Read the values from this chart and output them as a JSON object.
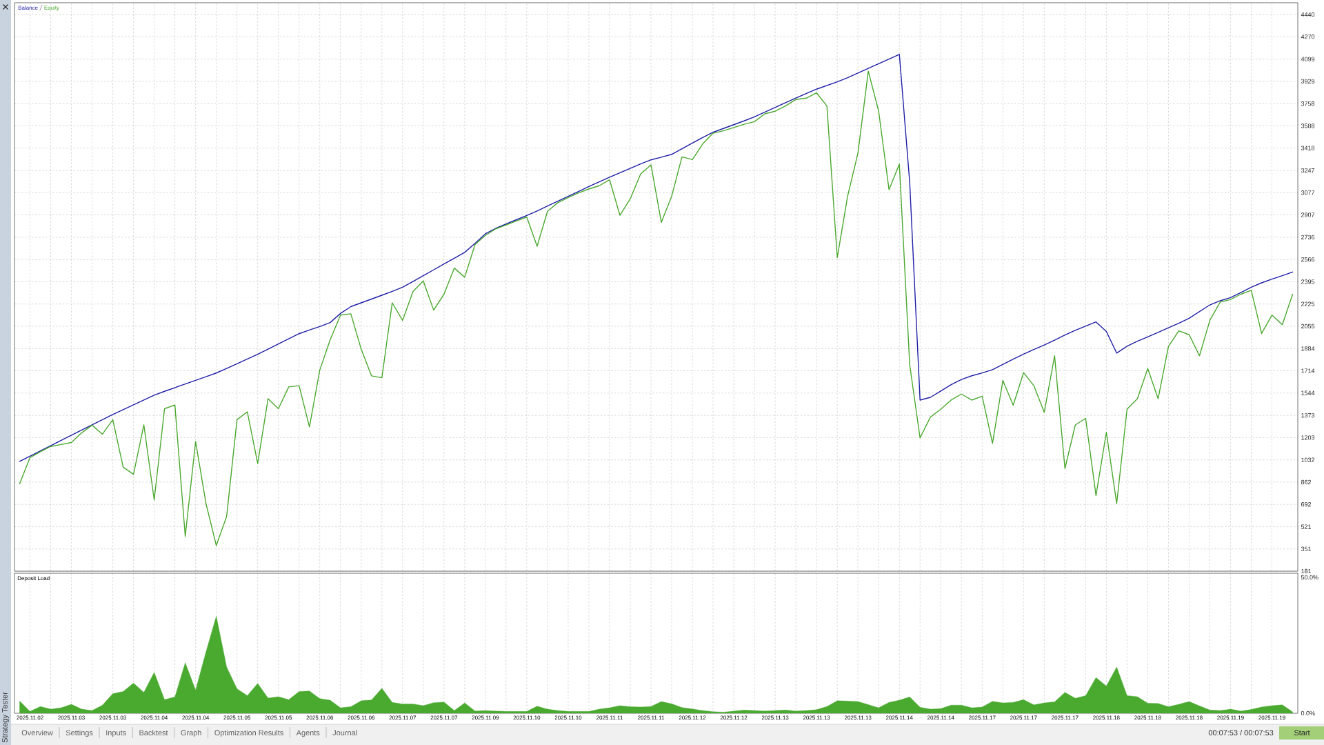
{
  "chart_data": [
    {
      "type": "line",
      "legend": "top left",
      "grid": true,
      "tick_labels": "y",
      "categories": [
        null,
        "2025.11.02",
        null,
        null,
        null,
        "2025.11.03",
        null,
        null,
        null,
        "2025.11.03",
        null,
        null,
        null,
        "2025.11.04",
        null,
        null,
        null,
        "2025.11.04",
        null,
        null,
        null,
        "2025.11.05",
        null,
        null,
        null,
        "2025.11.05",
        null,
        null,
        null,
        "2025.11.06",
        null,
        null,
        null,
        "2025.11.06",
        null,
        null,
        null,
        "2025.11.07",
        null,
        null,
        null,
        "2025.11.07",
        null,
        null,
        null,
        "2025.11.09",
        null,
        null,
        null,
        "2025.11.10",
        null,
        null,
        null,
        "2025.11.10",
        null,
        null,
        null,
        "2025.11.11",
        null,
        null,
        null,
        "2025.11.11",
        null,
        null,
        null,
        "2025.11.12",
        null,
        null,
        null,
        "2025.11.12",
        null,
        null,
        null,
        "2025.11.13",
        null,
        null,
        null,
        "2025.11.13",
        null,
        null,
        null,
        "2025.11.13",
        null,
        null,
        null,
        "2025.11.14",
        null,
        null,
        null,
        "2025.11.14",
        null,
        null,
        null,
        "2025.11.17",
        null,
        null,
        null,
        "2025.11.17",
        null,
        null,
        null,
        "2025.11.17",
        null,
        null,
        null,
        "2025.11.18",
        null,
        null,
        null,
        "2025.11.18",
        null,
        null,
        null,
        "2025.11.18",
        null,
        null,
        null,
        "2025.11.19",
        null,
        null,
        null,
        "2025.11.19",
        null,
        null
      ],
      "ylim": [
        181,
        4530
      ],
      "yticks": [
        4440,
        4270,
        4099,
        3929,
        3758,
        3588,
        3418,
        3247,
        3077,
        2907,
        2736,
        2566,
        2395,
        2225,
        2055,
        1884,
        1714,
        1544,
        1373,
        1203,
        1032,
        862,
        692,
        521,
        351,
        181
      ],
      "series": [
        {
          "name": "Balance",
          "color": "#1f1fa8",
          "values": [
            1021,
            1061,
            1101,
            1141,
            1181,
            1221,
            1261,
            1300,
            1340,
            1380,
            1417,
            1453,
            1490,
            1527,
            1557,
            1585,
            1613,
            1641,
            1669,
            1697,
            1732,
            1768,
            1804,
            1840,
            1880,
            1919,
            1959,
            1998,
            2026,
            2053,
            2083,
            2153,
            2205,
            2234,
            2263,
            2292,
            2322,
            2353,
            2397,
            2442,
            2486,
            2531,
            2575,
            2620,
            2689,
            2762,
            2804,
            2837,
            2870,
            2902,
            2937,
            2975,
            3012,
            3049,
            3086,
            3124,
            3160,
            3195,
            3229,
            3263,
            3297,
            3328,
            3348,
            3370,
            3413,
            3456,
            3499,
            3539,
            3568,
            3597,
            3626,
            3657,
            3693,
            3729,
            3765,
            3801,
            3835,
            3869,
            3897,
            3925,
            3957,
            3992,
            4028,
            4064,
            4099,
            4135,
            3155,
            1490,
            1511,
            1559,
            1608,
            1648,
            1676,
            1698,
            1723,
            1763,
            1803,
            1842,
            1877,
            1912,
            1948,
            1988,
            2024,
            2056,
            2088,
            2015,
            1849,
            1902,
            1940,
            1974,
            2008,
            2043,
            2078,
            2116,
            2167,
            2218,
            2250,
            2274,
            2313,
            2353,
            2387,
            2415,
            2442,
            2470
          ]
        },
        {
          "name": "Equity",
          "color": "#4aa82e",
          "values": [
            850,
            1050,
            1095,
            1135,
            1150,
            1165,
            1240,
            1298,
            1229,
            1340,
            977,
            922,
            1300,
            726,
            1424,
            1452,
            447,
            1173,
            700,
            377,
            600,
            1340,
            1400,
            1005,
            1500,
            1424,
            1591,
            1600,
            1285,
            1720,
            1950,
            2140,
            2150,
            1880,
            1675,
            1661,
            2234,
            2100,
            2320,
            2402,
            2178,
            2300,
            2500,
            2430,
            2680,
            2750,
            2800,
            2830,
            2860,
            2890,
            2667,
            2935,
            3000,
            3040,
            3075,
            3105,
            3130,
            3175,
            2904,
            3030,
            3220,
            3290,
            2850,
            3050,
            3351,
            3330,
            3450,
            3532,
            3550,
            3575,
            3600,
            3620,
            3680,
            3700,
            3740,
            3790,
            3800,
            3840,
            3740,
            2580,
            3050,
            3380,
            4007,
            3700,
            3100,
            3295,
            1760,
            1201,
            1360,
            1420,
            1490,
            1536,
            1490,
            1520,
            1159,
            1640,
            1450,
            1700,
            1600,
            1396,
            1829,
            966,
            1300,
            1350,
            760,
            1243,
            698,
            1420,
            1500,
            1731,
            1500,
            1900,
            2020,
            1990,
            1829,
            2100,
            2240,
            2260,
            2300,
            2330,
            2000,
            2140,
            2066,
            2300
          ]
        }
      ]
    },
    {
      "type": "area",
      "title": "Deposit Load",
      "grid": "x",
      "color": "#4aaa30",
      "categories": [
        null,
        "2025.11.02",
        null,
        null,
        null,
        "2025.11.03",
        null,
        null,
        null,
        "2025.11.03",
        null,
        null,
        null,
        "2025.11.04",
        null,
        null,
        null,
        "2025.11.04",
        null,
        null,
        null,
        "2025.11.05",
        null,
        null,
        null,
        "2025.11.05",
        null,
        null,
        null,
        "2025.11.06",
        null,
        null,
        null,
        "2025.11.06",
        null,
        null,
        null,
        "2025.11.07",
        null,
        null,
        null,
        "2025.11.07",
        null,
        null,
        null,
        "2025.11.09",
        null,
        null,
        null,
        "2025.11.10",
        null,
        null,
        null,
        "2025.11.10",
        null,
        null,
        null,
        "2025.11.11",
        null,
        null,
        null,
        "2025.11.11",
        null,
        null,
        null,
        "2025.11.12",
        null,
        null,
        null,
        "2025.11.12",
        null,
        null,
        null,
        "2025.11.13",
        null,
        null,
        null,
        "2025.11.13",
        null,
        null,
        null,
        "2025.11.13",
        null,
        null,
        null,
        "2025.11.14",
        null,
        null,
        null,
        "2025.11.14",
        null,
        null,
        null,
        "2025.11.17",
        null,
        null,
        null,
        "2025.11.17",
        null,
        null,
        null,
        "2025.11.17",
        null,
        null,
        null,
        "2025.11.18",
        null,
        null,
        null,
        "2025.11.18",
        null,
        null,
        null,
        "2025.11.18",
        null,
        null,
        null,
        "2025.11.19",
        null,
        null,
        null,
        "2025.11.19",
        null,
        null
      ],
      "ylim": [
        0,
        51.5
      ],
      "yticks": [
        {
          "value": 50,
          "label": "50.0%"
        },
        {
          "value": 0,
          "label": "0.0%"
        }
      ],
      "values": [
        4.5,
        0.7,
        2.5,
        1.5,
        2.0,
        3.3,
        1.5,
        1.0,
        3.0,
        7.2,
        8.0,
        11.1,
        7.7,
        15.0,
        5.0,
        6.0,
        18.6,
        8.5,
        22.5,
        35.7,
        17.0,
        9.0,
        6.5,
        11.0,
        5.6,
        6.1,
        5.0,
        8.0,
        8.2,
        5.4,
        4.8,
        2.0,
        2.4,
        4.6,
        4.9,
        9.2,
        4.0,
        3.4,
        3.4,
        2.8,
        3.9,
        4.1,
        1.0,
        3.8,
        0.8,
        1.0,
        0.8,
        0.7,
        0.7,
        0.7,
        2.6,
        1.5,
        1.0,
        0.7,
        0.7,
        0.7,
        1.5,
        2.0,
        2.8,
        2.4,
        2.3,
        2.5,
        4.3,
        3.5,
        2.1,
        1.6,
        1.0,
        0.6,
        0.4,
        0.8,
        1.2,
        1.0,
        0.8,
        1.0,
        1.2,
        0.8,
        1.0,
        1.3,
        2.5,
        4.6,
        4.5,
        4.3,
        3.2,
        2.0,
        4.0,
        4.8,
        6.0,
        2.2,
        1.5,
        1.7,
        3.0,
        3.0,
        2.0,
        2.3,
        4.4,
        3.8,
        4.0,
        5.0,
        3.1,
        3.8,
        4.2,
        7.7,
        5.5,
        6.5,
        13.1,
        10.0,
        17.0,
        6.5,
        6.1,
        3.7,
        3.6,
        2.4,
        3.3,
        4.3,
        2.7,
        1.2,
        1.0,
        1.5,
        0.8,
        1.4,
        2.3,
        2.8,
        3.1,
        0.5
      ],
      "annotations": [
        "Strategy Tester",
        "Overview",
        "Settings",
        "Inputs",
        "Backtest",
        "Graph",
        "Optimization Results",
        "Agents",
        "Journal",
        "00:07:53 / 00:07:53",
        "Start"
      ]
    }
  ]
}
